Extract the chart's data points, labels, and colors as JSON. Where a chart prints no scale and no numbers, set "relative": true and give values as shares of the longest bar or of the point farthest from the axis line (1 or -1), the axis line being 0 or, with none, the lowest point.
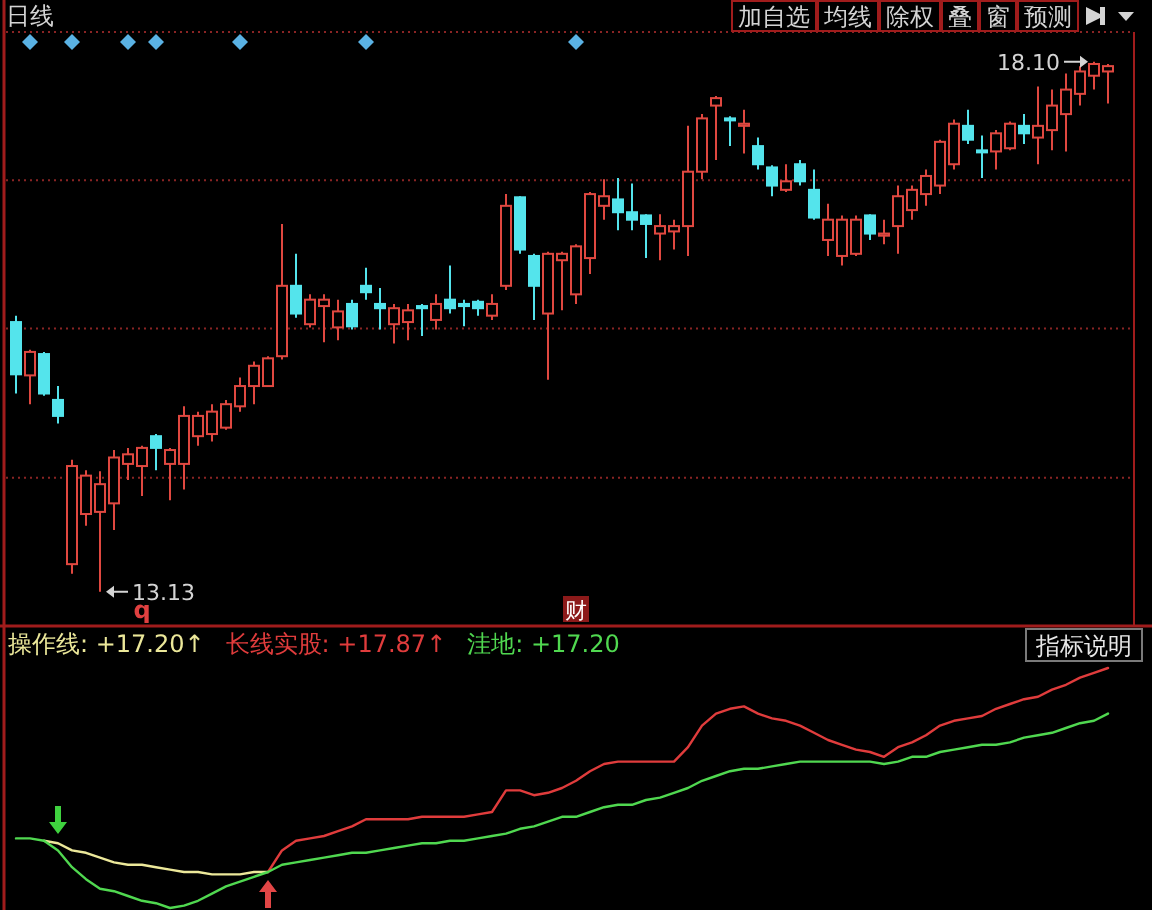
{
  "chart_data": [
    {
      "type": "candlestick",
      "title": "日线",
      "grid": true,
      "ylim": [
        12.81,
        18.38
      ],
      "yticks": [
        {
          "value": 18.38,
          "label": null
        },
        {
          "value": 16.99,
          "label": null
        },
        {
          "value": 15.6,
          "label": null
        },
        {
          "value": 14.2,
          "label": null
        }
      ],
      "categories": [
        null,
        null,
        null,
        null,
        null,
        null,
        null,
        null,
        null,
        null,
        null,
        null,
        null,
        null,
        null,
        null,
        null,
        null,
        null,
        null,
        null,
        null,
        null,
        null,
        null,
        null,
        null,
        null,
        null,
        null,
        null,
        null,
        null,
        null,
        null,
        null,
        null,
        null,
        null,
        null,
        null,
        null,
        null,
        null,
        null,
        null,
        null,
        null,
        null,
        null,
        null,
        null,
        null,
        null,
        null,
        null,
        null,
        null,
        null,
        null,
        null,
        null,
        null,
        null,
        null,
        null,
        null,
        null,
        null,
        null,
        null,
        null,
        null,
        null,
        null,
        null,
        null,
        null,
        null
      ],
      "ohlc": [
        [
          15.66,
          15.72,
          14.99,
          15.17
        ],
        [
          15.16,
          15.4,
          14.89,
          15.38
        ],
        [
          15.36,
          15.38,
          14.97,
          14.99
        ],
        [
          14.93,
          15.06,
          14.71,
          14.78
        ],
        [
          13.39,
          14.37,
          13.3,
          14.31
        ],
        [
          13.86,
          14.27,
          13.75,
          14.22
        ],
        [
          13.88,
          14.26,
          13.13,
          14.14
        ],
        [
          13.96,
          14.46,
          13.71,
          14.39
        ],
        [
          14.33,
          14.48,
          14.18,
          14.42
        ],
        [
          14.31,
          14.5,
          14.03,
          14.48
        ],
        [
          14.59,
          14.61,
          14.27,
          14.48
        ],
        [
          14.33,
          14.48,
          13.99,
          14.46
        ],
        [
          14.33,
          14.87,
          14.09,
          14.78
        ],
        [
          14.59,
          14.82,
          14.5,
          14.78
        ],
        [
          14.61,
          14.89,
          14.54,
          14.82
        ],
        [
          14.67,
          14.93,
          14.65,
          14.89
        ],
        [
          14.87,
          15.14,
          14.82,
          15.06
        ],
        [
          15.06,
          15.29,
          14.89,
          15.25
        ],
        [
          15.06,
          15.34,
          15.06,
          15.32
        ],
        [
          15.34,
          16.58,
          15.31,
          16.0
        ],
        [
          16.0,
          16.3,
          15.7,
          15.74
        ],
        [
          15.64,
          15.92,
          15.61,
          15.87
        ],
        [
          15.81,
          15.92,
          15.47,
          15.87
        ],
        [
          15.61,
          15.87,
          15.49,
          15.76
        ],
        [
          15.83,
          15.87,
          15.59,
          15.62
        ],
        [
          16.0,
          16.17,
          15.87,
          15.94
        ],
        [
          15.83,
          15.98,
          15.59,
          15.79
        ],
        [
          15.64,
          15.83,
          15.46,
          15.79
        ],
        [
          15.66,
          15.83,
          15.49,
          15.77
        ],
        [
          15.81,
          15.83,
          15.53,
          15.79
        ],
        [
          15.68,
          15.92,
          15.59,
          15.83
        ],
        [
          15.87,
          16.19,
          15.74,
          15.79
        ],
        [
          15.83,
          15.87,
          15.62,
          15.81
        ],
        [
          15.85,
          15.87,
          15.72,
          15.79
        ],
        [
          15.72,
          15.92,
          15.68,
          15.83
        ],
        [
          16.0,
          16.86,
          15.96,
          16.75
        ],
        [
          16.83,
          16.84,
          16.3,
          16.34
        ],
        [
          16.28,
          16.3,
          15.68,
          16.0
        ],
        [
          15.74,
          16.32,
          15.12,
          16.3
        ],
        [
          16.24,
          16.32,
          15.77,
          16.3
        ],
        [
          15.92,
          16.39,
          15.83,
          16.37
        ],
        [
          16.26,
          16.88,
          16.11,
          16.86
        ],
        [
          16.75,
          17.0,
          16.62,
          16.84
        ],
        [
          16.81,
          17.01,
          16.52,
          16.69
        ],
        [
          16.69,
          16.96,
          16.52,
          16.62
        ],
        [
          16.66,
          16.67,
          16.26,
          16.58
        ],
        [
          16.49,
          16.67,
          16.24,
          16.56
        ],
        [
          16.51,
          16.62,
          16.34,
          16.56
        ],
        [
          16.56,
          17.5,
          16.28,
          17.07
        ],
        [
          17.07,
          17.61,
          17.0,
          17.57
        ],
        [
          17.69,
          17.78,
          17.18,
          17.76
        ],
        [
          17.57,
          17.59,
          17.31,
          17.56
        ],
        [
          17.5,
          17.65,
          17.24,
          17.52
        ],
        [
          17.31,
          17.39,
          17.09,
          17.14
        ],
        [
          17.11,
          17.13,
          16.84,
          16.94
        ],
        [
          16.9,
          17.14,
          16.88,
          16.98
        ],
        [
          17.14,
          17.18,
          16.94,
          16.98
        ],
        [
          16.9,
          17.09,
          16.62,
          16.64
        ],
        [
          16.43,
          16.77,
          16.28,
          16.62
        ],
        [
          16.28,
          16.66,
          16.19,
          16.62
        ],
        [
          16.3,
          16.66,
          16.28,
          16.62
        ],
        [
          16.66,
          16.67,
          16.43,
          16.49
        ],
        [
          16.47,
          16.62,
          16.39,
          16.49
        ],
        [
          16.56,
          16.94,
          16.3,
          16.84
        ],
        [
          16.71,
          16.94,
          16.62,
          16.9
        ],
        [
          16.86,
          17.09,
          16.75,
          17.03
        ],
        [
          16.94,
          17.37,
          16.86,
          17.35
        ],
        [
          17.14,
          17.56,
          17.09,
          17.52
        ],
        [
          17.5,
          17.65,
          17.33,
          17.37
        ],
        [
          17.27,
          17.41,
          17.01,
          17.26
        ],
        [
          17.26,
          17.46,
          17.09,
          17.43
        ],
        [
          17.29,
          17.54,
          17.27,
          17.52
        ],
        [
          17.5,
          17.61,
          17.33,
          17.43
        ],
        [
          17.39,
          17.87,
          17.14,
          17.5
        ],
        [
          17.46,
          17.84,
          17.27,
          17.69
        ],
        [
          17.61,
          17.99,
          17.26,
          17.84
        ],
        [
          17.8,
          18.06,
          17.69,
          18.01
        ],
        [
          17.97,
          18.1,
          17.84,
          18.08
        ],
        [
          18.01,
          18.08,
          17.71,
          18.06
        ]
      ],
      "colors": [
        "#54e4ec",
        "#e04840",
        "#54e4ec",
        "#54e4ec",
        "#e04840",
        "#e04840",
        "#e04840",
        "#e04840",
        "#e04840",
        "#e04840",
        "#54e4ec",
        "#e04840",
        "#e04840",
        "#e04840",
        "#e04840",
        "#e04840",
        "#e04840",
        "#e04840",
        "#e04840",
        "#e04840",
        "#54e4ec",
        "#e04840",
        "#e04840",
        "#e04840",
        "#54e4ec",
        "#54e4ec",
        "#54e4ec",
        "#e04840",
        "#e04840",
        "#54e4ec",
        "#e04840",
        "#54e4ec",
        "#54e4ec",
        "#54e4ec",
        "#e04840",
        "#e04840",
        "#54e4ec",
        "#54e4ec",
        "#e04840",
        "#e04840",
        "#e04840",
        "#e04840",
        "#e04840",
        "#54e4ec",
        "#54e4ec",
        "#54e4ec",
        "#e04840",
        "#e04840",
        "#e04840",
        "#e04840",
        "#e04840",
        "#54e4ec",
        "#e04840",
        "#54e4ec",
        "#54e4ec",
        "#e04840",
        "#54e4ec",
        "#54e4ec",
        "#e04840",
        "#e04840",
        "#e04840",
        "#54e4ec",
        "#e04840",
        "#e04840",
        "#e04840",
        "#e04840",
        "#e04840",
        "#e04840",
        "#54e4ec",
        "#54e4ec",
        "#e04840",
        "#e04840",
        "#54e4ec",
        "#e04840",
        "#e04840",
        "#e04840",
        "#e04840",
        "#e04840",
        "#e04840"
      ],
      "annotations": [
        "18.10",
        "13.13",
        "q",
        "财",
        "加自选",
        "均线",
        "除权",
        "叠",
        "窗",
        "预测"
      ]
    },
    {
      "type": "line",
      "relative": true,
      "legend": "top left",
      "categories": [
        null,
        null,
        null,
        null,
        null,
        null,
        null,
        null,
        null,
        null,
        null,
        null,
        null,
        null,
        null,
        null,
        null,
        null,
        null,
        null,
        null,
        null,
        null,
        null,
        null,
        null,
        null,
        null,
        null,
        null,
        null,
        null,
        null,
        null,
        null,
        null,
        null,
        null,
        null,
        null,
        null,
        null,
        null,
        null,
        null,
        null,
        null,
        null,
        null,
        null,
        null,
        null,
        null,
        null,
        null,
        null,
        null,
        null,
        null,
        null,
        null,
        null,
        null,
        null,
        null,
        null,
        null,
        null,
        null,
        null,
        null,
        null,
        null,
        null,
        null,
        null,
        null,
        null,
        null
      ],
      "series": [
        {
          "name": "操作线: +17.20↑",
          "color": "#ece89a",
          "values": [
            null,
            null,
            0.28,
            0.27,
            0.24,
            0.23,
            0.21,
            0.19,
            0.18,
            0.18,
            0.17,
            0.16,
            0.15,
            0.15,
            0.14,
            0.14,
            0.14,
            0.15,
            0.15,
            null,
            null,
            null,
            null,
            null,
            null,
            null,
            null,
            null,
            null,
            null,
            null,
            null,
            null,
            null,
            null,
            null,
            null,
            null,
            null,
            null,
            null,
            null,
            null,
            null,
            null,
            null,
            null,
            null,
            null,
            null,
            null,
            null,
            null,
            null,
            null,
            null,
            null,
            null,
            null,
            null,
            null,
            null,
            null,
            null,
            null,
            null,
            null,
            null,
            null,
            null,
            null,
            null,
            null,
            null,
            null,
            null,
            null,
            null,
            null
          ]
        },
        {
          "name": "长线实股: +17.87↑",
          "color": "#e03c3c",
          "values": [
            null,
            null,
            null,
            null,
            null,
            null,
            null,
            null,
            null,
            null,
            null,
            null,
            null,
            null,
            null,
            null,
            null,
            null,
            0.15,
            0.24,
            0.28,
            0.29,
            0.3,
            0.32,
            0.34,
            0.37,
            0.37,
            0.37,
            0.37,
            0.38,
            0.38,
            0.38,
            0.38,
            0.39,
            0.4,
            0.49,
            0.49,
            0.47,
            0.48,
            0.5,
            0.53,
            0.57,
            0.6,
            0.61,
            0.61,
            0.61,
            0.61,
            0.61,
            0.67,
            0.76,
            0.81,
            0.83,
            0.84,
            0.81,
            0.79,
            0.78,
            0.76,
            0.73,
            0.7,
            0.68,
            0.66,
            0.65,
            0.63,
            0.67,
            0.69,
            0.72,
            0.76,
            0.78,
            0.79,
            0.8,
            0.83,
            0.85,
            0.87,
            0.88,
            0.91,
            0.93,
            0.96,
            0.98,
            1
          ]
        },
        {
          "name": "洼地: +17.20",
          "color": "#50d850",
          "values": [
            0.29,
            0.29,
            0.28,
            0.24,
            0.17,
            0.12,
            0.08,
            0.07,
            0.05,
            0.03,
            0.02,
            0,
            0.01,
            0.03,
            0.06,
            0.09,
            0.11,
            0.13,
            0.15,
            0.18,
            0.19,
            0.2,
            0.21,
            0.22,
            0.23,
            0.23,
            0.24,
            0.25,
            0.26,
            0.27,
            0.27,
            0.28,
            0.28,
            0.29,
            0.3,
            0.31,
            0.33,
            0.34,
            0.36,
            0.38,
            0.38,
            0.4,
            0.42,
            0.43,
            0.43,
            0.45,
            0.46,
            0.48,
            0.5,
            0.53,
            0.55,
            0.57,
            0.58,
            0.58,
            0.59,
            0.6,
            0.61,
            0.61,
            0.61,
            0.61,
            0.61,
            0.61,
            0.6,
            0.61,
            0.63,
            0.63,
            0.65,
            0.66,
            0.67,
            0.68,
            0.68,
            0.69,
            0.71,
            0.72,
            0.73,
            0.75,
            0.77,
            0.78,
            0.81
          ]
        }
      ],
      "annotations": [
        "指标说明"
      ]
    }
  ]
}
